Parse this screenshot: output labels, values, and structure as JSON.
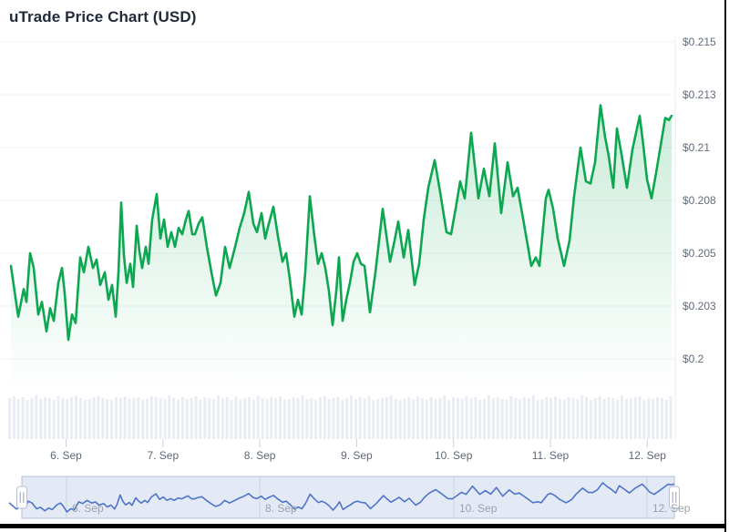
{
  "title": "uTrade Price Chart (USD)",
  "colors": {
    "line_green": "#0ea751",
    "area_green_top": "rgba(14,167,81,0.22)",
    "area_green_bottom": "rgba(14,167,81,0)",
    "gridline": "#eff1f4",
    "plot_right_border": "#e9ebef",
    "axis_text": "#5f6774",
    "y_axis_text": "#646c79",
    "volume_bar": "#e9ecf2",
    "tick": "#ccd1da",
    "navigator_fill": "#e4eaf5",
    "navigator_outline": "#b2bcd4",
    "navigator_line": "#4e74c9",
    "navigator_gridline": "#c9d1e0",
    "navigator_text": "#9aa1ad",
    "handle_fill": "#ffffff",
    "handle_stroke": "#b6c0d2",
    "handle_grip": "#96a0b2",
    "frame_border": "#000000"
  },
  "chart_data": {
    "type": "area",
    "title": "uTrade Price Chart (USD)",
    "currency": "USD",
    "legend": "none",
    "grid": "horizontal",
    "y_axis": {
      "side": "right",
      "range": [
        0.2,
        0.215
      ],
      "ticks": [
        {
          "value": 0.215,
          "label": "$0.215"
        },
        {
          "value": 0.2125,
          "label": "$0.213"
        },
        {
          "value": 0.21,
          "label": "$0.21"
        },
        {
          "value": 0.2075,
          "label": "$0.208"
        },
        {
          "value": 0.205,
          "label": "$0.205"
        },
        {
          "value": 0.2025,
          "label": "$0.203"
        },
        {
          "value": 0.2,
          "label": "$0.2"
        }
      ]
    },
    "x_axis": {
      "labels": [
        "6. Sep",
        "7. Sep",
        "8. Sep",
        "9. Sep",
        "10. Sep",
        "11. Sep",
        "12. Sep"
      ]
    },
    "series_name": "uTrade price (USD)",
    "series": [
      [
        12,
        0.2044
      ],
      [
        20,
        0.202
      ],
      [
        26,
        0.2033
      ],
      [
        29,
        0.2027
      ],
      [
        33,
        0.205
      ],
      [
        37,
        0.2043
      ],
      [
        42,
        0.2021
      ],
      [
        46,
        0.2027
      ],
      [
        51,
        0.2013
      ],
      [
        55,
        0.2024
      ],
      [
        59,
        0.2018
      ],
      [
        64,
        0.2036
      ],
      [
        68,
        0.2043
      ],
      [
        71,
        0.2031
      ],
      [
        75,
        0.2009
      ],
      [
        79,
        0.2021
      ],
      [
        83,
        0.2017
      ],
      [
        88,
        0.2048
      ],
      [
        92,
        0.2041
      ],
      [
        97,
        0.2053
      ],
      [
        102,
        0.2043
      ],
      [
        106,
        0.2047
      ],
      [
        110,
        0.2035
      ],
      [
        115,
        0.2041
      ],
      [
        119,
        0.2028
      ],
      [
        123,
        0.2035
      ],
      [
        127,
        0.202
      ],
      [
        130,
        0.2041
      ],
      [
        133,
        0.2074
      ],
      [
        136,
        0.2049
      ],
      [
        139,
        0.2036
      ],
      [
        143,
        0.2045
      ],
      [
        146,
        0.2034
      ],
      [
        150,
        0.2063
      ],
      [
        153,
        0.2051
      ],
      [
        156,
        0.2043
      ],
      [
        160,
        0.2053
      ],
      [
        163,
        0.2045
      ],
      [
        167,
        0.2066
      ],
      [
        172,
        0.2078
      ],
      [
        176,
        0.2057
      ],
      [
        180,
        0.2066
      ],
      [
        184,
        0.2053
      ],
      [
        188,
        0.206
      ],
      [
        192,
        0.2053
      ],
      [
        196,
        0.2062
      ],
      [
        200,
        0.2059
      ],
      [
        204,
        0.2066
      ],
      [
        207,
        0.207
      ],
      [
        211,
        0.2059
      ],
      [
        214,
        0.2059
      ],
      [
        218,
        0.2064
      ],
      [
        222,
        0.2067
      ],
      [
        227,
        0.2053
      ],
      [
        232,
        0.2041
      ],
      [
        237,
        0.203
      ],
      [
        242,
        0.2036
      ],
      [
        247,
        0.2053
      ],
      [
        252,
        0.2043
      ],
      [
        258,
        0.2053
      ],
      [
        263,
        0.2062
      ],
      [
        268,
        0.2069
      ],
      [
        273,
        0.2079
      ],
      [
        278,
        0.2064
      ],
      [
        282,
        0.206
      ],
      [
        287,
        0.2069
      ],
      [
        291,
        0.2057
      ],
      [
        295,
        0.2064
      ],
      [
        300,
        0.2072
      ],
      [
        305,
        0.2058
      ],
      [
        310,
        0.2046
      ],
      [
        314,
        0.205
      ],
      [
        318,
        0.2038
      ],
      [
        323,
        0.202
      ],
      [
        327,
        0.2028
      ],
      [
        331,
        0.2021
      ],
      [
        335,
        0.2041
      ],
      [
        340,
        0.2077
      ],
      [
        345,
        0.2058
      ],
      [
        349,
        0.2045
      ],
      [
        353,
        0.205
      ],
      [
        357,
        0.2043
      ],
      [
        361,
        0.2032
      ],
      [
        365,
        0.2016
      ],
      [
        369,
        0.2032
      ],
      [
        372,
        0.2048
      ],
      [
        376,
        0.2018
      ],
      [
        380,
        0.2028
      ],
      [
        384,
        0.2036
      ],
      [
        388,
        0.2046
      ],
      [
        392,
        0.205
      ],
      [
        396,
        0.2045
      ],
      [
        400,
        0.2044
      ],
      [
        406,
        0.2022
      ],
      [
        412,
        0.2041
      ],
      [
        420,
        0.2071
      ],
      [
        428,
        0.2046
      ],
      [
        433,
        0.2056
      ],
      [
        437,
        0.2065
      ],
      [
        443,
        0.2048
      ],
      [
        448,
        0.2061
      ],
      [
        455,
        0.2035
      ],
      [
        460,
        0.2045
      ],
      [
        465,
        0.2066
      ],
      [
        470,
        0.2081
      ],
      [
        477,
        0.2094
      ],
      [
        483,
        0.2079
      ],
      [
        490,
        0.206
      ],
      [
        495,
        0.2059
      ],
      [
        500,
        0.2071
      ],
      [
        505,
        0.2084
      ],
      [
        510,
        0.2076
      ],
      [
        517,
        0.2107
      ],
      [
        525,
        0.2076
      ],
      [
        531,
        0.209
      ],
      [
        537,
        0.2077
      ],
      [
        543,
        0.2102
      ],
      [
        550,
        0.2069
      ],
      [
        557,
        0.2093
      ],
      [
        563,
        0.2077
      ],
      [
        568,
        0.2081
      ],
      [
        575,
        0.2064
      ],
      [
        583,
        0.2044
      ],
      [
        588,
        0.2048
      ],
      [
        592,
        0.2044
      ],
      [
        599,
        0.2076
      ],
      [
        602,
        0.208
      ],
      [
        607,
        0.2071
      ],
      [
        612,
        0.2057
      ],
      [
        619,
        0.2044
      ],
      [
        625,
        0.2056
      ],
      [
        630,
        0.2077
      ],
      [
        637,
        0.21
      ],
      [
        643,
        0.2084
      ],
      [
        648,
        0.2083
      ],
      [
        653,
        0.2093
      ],
      [
        659,
        0.212
      ],
      [
        664,
        0.2105
      ],
      [
        668,
        0.2096
      ],
      [
        673,
        0.2081
      ],
      [
        677,
        0.2109
      ],
      [
        682,
        0.2097
      ],
      [
        688,
        0.2081
      ],
      [
        694,
        0.2099
      ],
      [
        702,
        0.2115
      ],
      [
        706,
        0.2101
      ],
      [
        710,
        0.2085
      ],
      [
        715,
        0.2076
      ],
      [
        720,
        0.2088
      ],
      [
        725,
        0.2101
      ],
      [
        730,
        0.2114
      ],
      [
        734,
        0.2113
      ],
      [
        737,
        0.2115
      ]
    ],
    "volume_bars": [
      45,
      47,
      44,
      46,
      43,
      45,
      48,
      44,
      46,
      45,
      43,
      47,
      45,
      44,
      46,
      48,
      45,
      43,
      44,
      46,
      47,
      45,
      44,
      43,
      46,
      45,
      47,
      44,
      45,
      46,
      43,
      44,
      47,
      46,
      45,
      44,
      48,
      45,
      43,
      46,
      44,
      45,
      47,
      43,
      46,
      45,
      44,
      48,
      45,
      46,
      43,
      47,
      44,
      45,
      46,
      43,
      48,
      45,
      44,
      46,
      45,
      47,
      43,
      44,
      46,
      45,
      48,
      44,
      45,
      43,
      46,
      47,
      44,
      45,
      46,
      43,
      45,
      48,
      44,
      46,
      45,
      47,
      43,
      44,
      45,
      46,
      48,
      44,
      43,
      45,
      46,
      44,
      47,
      45,
      43,
      46,
      44,
      45,
      48,
      43,
      46,
      45,
      44,
      47,
      45,
      46,
      43,
      44,
      48,
      45,
      46,
      44,
      43,
      47,
      45,
      44,
      46,
      45,
      48,
      43,
      44,
      46,
      45,
      47,
      44,
      43,
      46,
      45,
      44,
      48,
      46,
      43,
      45,
      47,
      44,
      46,
      45,
      43,
      48,
      44,
      45,
      46,
      47,
      43,
      45,
      44,
      46,
      45,
      43,
      47
    ],
    "navigator": {
      "labels": [
        "6. Sep",
        "8. Sep",
        "10. Sep",
        "12. Sep"
      ],
      "range_selected": "full"
    }
  }
}
